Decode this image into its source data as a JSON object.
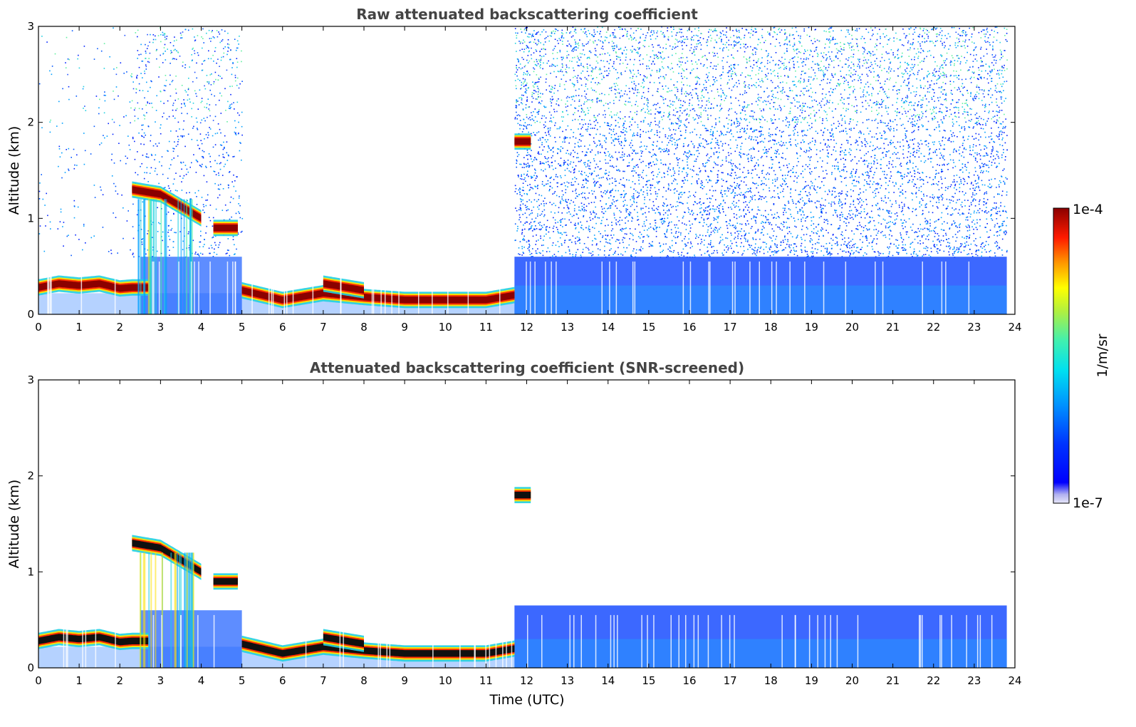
{
  "chart_data": [
    {
      "type": "heatmap",
      "title": "Raw attenuated backscattering coefficient",
      "xlabel": "",
      "ylabel": "Altitude (km)",
      "xlim": [
        0,
        24
      ],
      "ylim": [
        0,
        3
      ],
      "xticks": [
        "0",
        "1",
        "2",
        "3",
        "4",
        "5",
        "6",
        "7",
        "8",
        "9",
        "10",
        "11",
        "12",
        "13",
        "14",
        "15",
        "16",
        "17",
        "18",
        "19",
        "20",
        "21",
        "22",
        "23",
        "24"
      ],
      "yticks": [
        "0",
        "1",
        "2",
        "3"
      ],
      "screened": false,
      "layers": [
        {
          "name": "boundary-layer-top",
          "x": [
            0,
            0.5,
            1,
            1.5,
            2,
            2.3,
            2.7
          ],
          "y": [
            0.28,
            0.32,
            0.3,
            0.32,
            0.27,
            0.28,
            0.28
          ],
          "intensity": "high"
        },
        {
          "name": "cloud-layer",
          "x": [
            2.3,
            3,
            3.6,
            4.0
          ],
          "y": [
            1.3,
            1.25,
            1.1,
            1.0
          ],
          "intensity": "high"
        },
        {
          "name": "cloud-patch",
          "x": [
            4.3,
            4.9
          ],
          "y": [
            0.9,
            0.9
          ],
          "intensity": "high"
        },
        {
          "name": "low-cloud",
          "x": [
            5.0,
            6,
            7,
            8,
            9,
            10,
            11,
            11.7
          ],
          "y": [
            0.25,
            0.15,
            0.22,
            0.18,
            0.15,
            0.15,
            0.15,
            0.2
          ],
          "intensity": "high"
        },
        {
          "name": "elevated-layer",
          "x": [
            7.0,
            8.0
          ],
          "y": [
            0.32,
            0.25
          ],
          "intensity": "high"
        },
        {
          "name": "cloud-fragment",
          "x": [
            11.7,
            12.1
          ],
          "y": [
            1.8,
            1.8
          ],
          "intensity": "high"
        }
      ],
      "noise_regions": [
        {
          "x": [
            0,
            2.3
          ],
          "level": "sparse"
        },
        {
          "x": [
            2.3,
            5.0
          ],
          "level": "moderate"
        },
        {
          "x": [
            11.7,
            23.8
          ],
          "level": "dense"
        }
      ],
      "aerosol_layer": [
        {
          "x": [
            11.7,
            23.8
          ],
          "top": 0.6
        }
      ],
      "colorbar": {
        "label": "1/m/sr",
        "min": "1e-7",
        "max": "1e-4",
        "scale": "log",
        "colormap": "jet"
      }
    },
    {
      "type": "heatmap",
      "title": "Attenuated backscattering coefficient (SNR-screened)",
      "xlabel": "Time (UTC)",
      "ylabel": "Altitude (km)",
      "xlim": [
        0,
        24
      ],
      "ylim": [
        0,
        3
      ],
      "xticks": [
        "0",
        "1",
        "2",
        "3",
        "4",
        "5",
        "6",
        "7",
        "8",
        "9",
        "10",
        "11",
        "12",
        "13",
        "14",
        "15",
        "16",
        "17",
        "18",
        "19",
        "20",
        "21",
        "22",
        "23",
        "24"
      ],
      "yticks": [
        "0",
        "1",
        "2",
        "3"
      ],
      "screened": true,
      "layers": [
        {
          "name": "boundary-layer-top",
          "x": [
            0,
            0.5,
            1,
            1.5,
            2,
            2.3,
            2.7
          ],
          "y": [
            0.28,
            0.32,
            0.3,
            0.32,
            0.27,
            0.28,
            0.28
          ],
          "intensity": "saturated"
        },
        {
          "name": "cloud-layer",
          "x": [
            2.3,
            3,
            3.6,
            4.0
          ],
          "y": [
            1.3,
            1.25,
            1.1,
            1.0
          ],
          "intensity": "saturated"
        },
        {
          "name": "cloud-patch",
          "x": [
            4.3,
            4.9
          ],
          "y": [
            0.9,
            0.9
          ],
          "intensity": "saturated"
        },
        {
          "name": "low-cloud",
          "x": [
            5.0,
            6,
            7,
            8,
            9,
            10,
            11,
            11.7
          ],
          "y": [
            0.25,
            0.15,
            0.22,
            0.18,
            0.15,
            0.15,
            0.15,
            0.2
          ],
          "intensity": "saturated"
        },
        {
          "name": "elevated-layer",
          "x": [
            7.0,
            8.0
          ],
          "y": [
            0.32,
            0.25
          ],
          "intensity": "saturated"
        },
        {
          "name": "cloud-fragment",
          "x": [
            11.7,
            12.1
          ],
          "y": [
            1.8,
            1.8
          ],
          "intensity": "saturated"
        }
      ],
      "noise_regions": [],
      "aerosol_layer": [
        {
          "x": [
            11.7,
            23.8
          ],
          "top": 0.65
        }
      ],
      "colorbar": {
        "label": "1/m/sr",
        "min": "1e-7",
        "max": "1e-4",
        "scale": "log",
        "colormap": "jet"
      }
    }
  ],
  "colorbar": {
    "label": "1/m/sr",
    "max_label": "1e-4",
    "min_label": "1e-7"
  },
  "colors": {
    "title": "#444444",
    "axis": "#000000",
    "background": "#ffffff"
  }
}
